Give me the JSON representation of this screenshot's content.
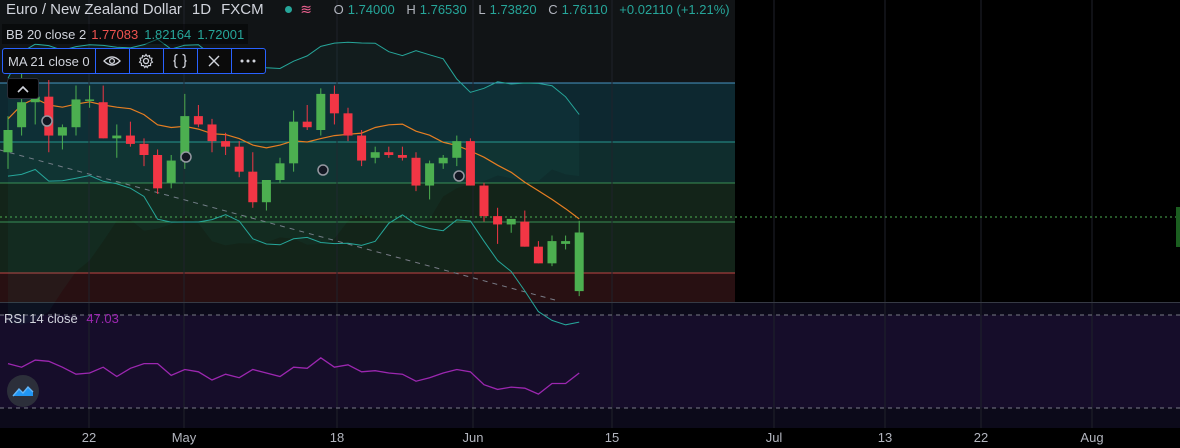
{
  "header": {
    "symbol": "Euro / New Zealand Dollar",
    "timeframe": "1D",
    "source": "FXCM",
    "open_label": "O",
    "open": "1.74000",
    "high_label": "H",
    "high": "1.76530",
    "low_label": "L",
    "low": "1.73820",
    "close_label": "C",
    "close": "1.76110",
    "change": "+0.02110 (+1.21%)"
  },
  "indicators": {
    "bb": {
      "name": "BB 20 close 2",
      "basis": "1.77083",
      "upper": "1.82164",
      "lower": "1.72001"
    },
    "ma": {
      "name": "MA 21 close 0"
    },
    "rsi": {
      "name": "RSI 14 close",
      "value": "47.03"
    }
  },
  "colors": {
    "up": "#4caf50",
    "down": "#f23645",
    "bb_band": "#26a69a",
    "ma": "#e67e22",
    "rsi": "#9c27b0"
  },
  "icons": [
    "eye-icon",
    "gear-icon",
    "braces-icon",
    "close-icon",
    "more-icon",
    "chevron-up-icon",
    "tradingview-logo-icon"
  ],
  "chart_data": [
    {
      "type": "candlestick",
      "title": "Euro / New Zealand Dollar",
      "series": [
        {
          "name": "EURNZD",
          "values": [
            [
              1.79,
              1.803,
              1.784,
              1.798
            ],
            [
              1.799,
              1.822,
              1.796,
              1.808
            ],
            [
              1.808,
              1.815,
              1.8,
              1.81
            ],
            [
              1.81,
              1.816,
              1.79,
              1.796
            ],
            [
              1.796,
              1.8,
              1.791,
              1.799
            ],
            [
              1.799,
              1.814,
              1.796,
              1.809
            ],
            [
              1.809,
              1.814,
              1.806,
              1.809
            ],
            [
              1.808,
              1.814,
              1.795,
              1.795
            ],
            [
              1.795,
              1.8,
              1.788,
              1.796
            ],
            [
              1.796,
              1.801,
              1.792,
              1.793
            ],
            [
              1.793,
              1.795,
              1.785,
              1.789
            ],
            [
              1.789,
              1.791,
              1.775,
              1.777
            ],
            [
              1.779,
              1.789,
              1.777,
              1.787
            ],
            [
              1.787,
              1.811,
              1.784,
              1.803
            ],
            [
              1.803,
              1.807,
              1.799,
              1.8
            ],
            [
              1.8,
              1.802,
              1.79,
              1.794
            ],
            [
              1.794,
              1.797,
              1.789,
              1.792
            ],
            [
              1.792,
              1.794,
              1.781,
              1.783
            ],
            [
              1.783,
              1.79,
              1.77,
              1.772
            ],
            [
              1.772,
              1.78,
              1.769,
              1.78
            ],
            [
              1.78,
              1.788,
              1.779,
              1.786
            ],
            [
              1.786,
              1.805,
              1.783,
              1.801
            ],
            [
              1.801,
              1.807,
              1.798,
              1.799
            ],
            [
              1.798,
              1.813,
              1.796,
              1.811
            ],
            [
              1.811,
              1.814,
              1.8,
              1.804
            ],
            [
              1.804,
              1.806,
              1.794,
              1.796
            ],
            [
              1.796,
              1.798,
              1.785,
              1.787
            ],
            [
              1.788,
              1.792,
              1.786,
              1.79
            ],
            [
              1.79,
              1.792,
              1.788,
              1.789
            ],
            [
              1.789,
              1.792,
              1.787,
              1.788
            ],
            [
              1.788,
              1.79,
              1.776,
              1.778
            ],
            [
              1.778,
              1.787,
              1.773,
              1.786
            ],
            [
              1.786,
              1.789,
              1.784,
              1.788
            ],
            [
              1.788,
              1.796,
              1.785,
              1.794
            ],
            [
              1.794,
              1.795,
              1.778,
              1.778
            ],
            [
              1.778,
              1.779,
              1.765,
              1.767
            ],
            [
              1.767,
              1.77,
              1.757,
              1.764
            ],
            [
              1.764,
              1.766,
              1.761,
              1.766
            ],
            [
              1.765,
              1.769,
              1.756,
              1.756
            ],
            [
              1.756,
              1.758,
              1.75,
              1.75
            ],
            [
              1.75,
              1.76,
              1.749,
              1.758
            ],
            [
              1.757,
              1.76,
              1.755,
              1.758
            ],
            [
              1.74,
              1.7653,
              1.7382,
              1.7611
            ]
          ]
        }
      ],
      "x_tick_labels": [
        "22",
        "May",
        "18",
        "Jun",
        "15",
        "Jul",
        "13",
        "22",
        "Aug"
      ],
      "bb": {
        "basis": 1.77083,
        "upper": 1.82164,
        "lower": 1.72001
      },
      "grid": true
    },
    {
      "type": "line",
      "title": "RSI 14 close",
      "series": [
        {
          "name": "RSI 14 close",
          "values": [
            55,
            52,
            58,
            57,
            52,
            46,
            47,
            52,
            44,
            51,
            55,
            55,
            45,
            50,
            48,
            41,
            46,
            43,
            50,
            47,
            44,
            52,
            51,
            60,
            52,
            54,
            48,
            49,
            47,
            46,
            40,
            43,
            47,
            50,
            48,
            37,
            33,
            35,
            34,
            29,
            38,
            38,
            47
          ]
        }
      ],
      "ylim": [
        0,
        100
      ],
      "grid": true
    }
  ]
}
